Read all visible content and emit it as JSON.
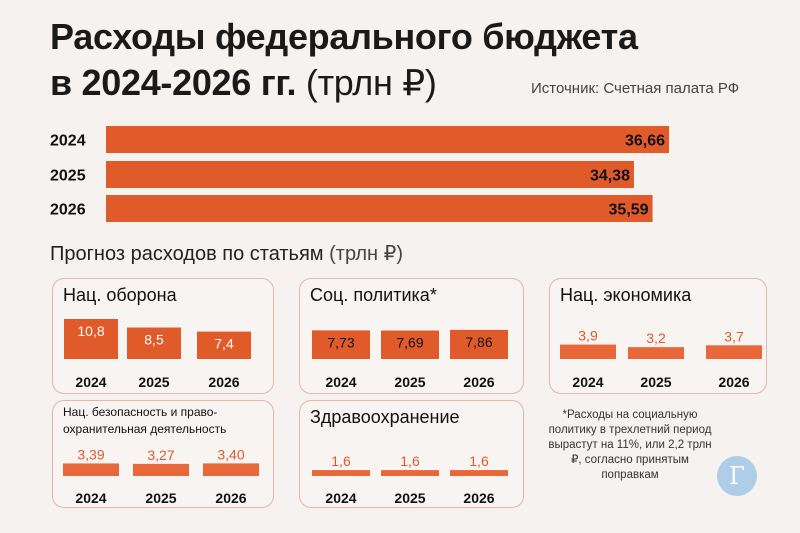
{
  "header": {
    "title_line1": "Расходы федерального бюджета",
    "title_line2": "в 2024-2026 гг.",
    "title_unit": "(трлн ₽)",
    "source": "Источник: Счетная палата РФ"
  },
  "colors": {
    "bar": "#e15b2a",
    "bar_light": "#e8683a",
    "panel_border": "#e3b6aa"
  },
  "chart_data": [
    {
      "type": "bar",
      "orientation": "horizontal",
      "title": "Расходы федерального бюджета в 2024-2026 гг. (трлн ₽)",
      "categories": [
        "2024",
        "2025",
        "2026"
      ],
      "values": [
        36.66,
        34.38,
        35.59
      ],
      "value_labels": [
        "36,66",
        "34,38",
        "35,59"
      ],
      "xlim": [
        0,
        36.66
      ]
    },
    {
      "type": "bar",
      "title": "Нац. оборона",
      "categories": [
        "2024",
        "2025",
        "2026"
      ],
      "values": [
        10.8,
        8.5,
        7.4
      ],
      "value_labels": [
        "10,8",
        "8,5",
        "7,4"
      ],
      "ylim": [
        0,
        10.8
      ]
    },
    {
      "type": "bar",
      "title": "Соц. политика*",
      "categories": [
        "2024",
        "2025",
        "2026"
      ],
      "values": [
        7.73,
        7.69,
        7.86
      ],
      "value_labels": [
        "7,73",
        "7,69",
        "7,86"
      ],
      "ylim": [
        0,
        10.8
      ]
    },
    {
      "type": "bar",
      "title": "Нац. экономика",
      "categories": [
        "2024",
        "2025",
        "2026"
      ],
      "values": [
        3.9,
        3.2,
        3.7
      ],
      "value_labels": [
        "3,9",
        "3,2",
        "3,7"
      ],
      "ylim": [
        0,
        10.8
      ]
    },
    {
      "type": "bar",
      "title": "Нац. безопасность и право-охранительная деятельность",
      "categories": [
        "2024",
        "2025",
        "2026"
      ],
      "values": [
        3.39,
        3.27,
        3.4
      ],
      "value_labels": [
        "3,39",
        "3,27",
        "3,40"
      ],
      "ylim": [
        0,
        10.8
      ]
    },
    {
      "type": "bar",
      "title": "Здравоохранение",
      "categories": [
        "2024",
        "2025",
        "2026"
      ],
      "values": [
        1.6,
        1.6,
        1.6
      ],
      "value_labels": [
        "1,6",
        "1,6",
        "1,6"
      ],
      "ylim": [
        0,
        10.8
      ]
    }
  ],
  "forecast": {
    "title": "Прогноз расходов по статьям",
    "unit": "(трлн ₽)"
  },
  "note": "*Расходы на социальную политику в трехлетний период вырастут на 11%, или 2,2 трлн ₽, согласно принятым поправкам",
  "logo": {
    "glyph": "Г",
    "icon": "gazeta-logo-icon"
  }
}
